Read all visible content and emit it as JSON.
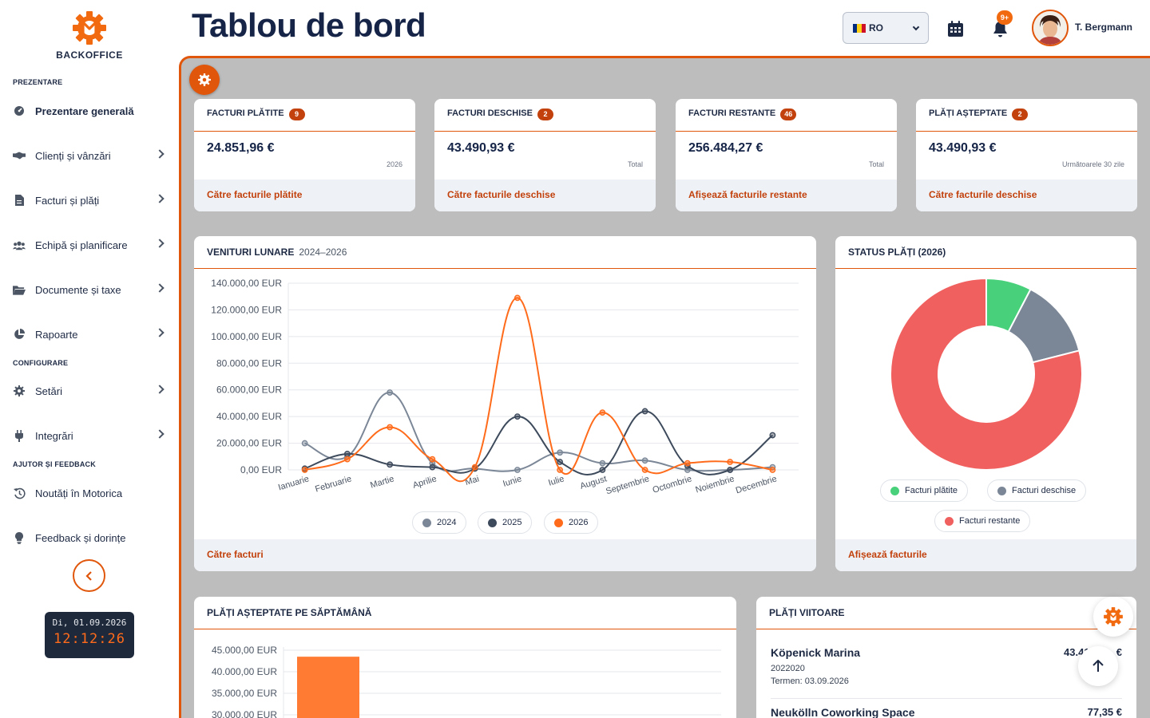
{
  "app": {
    "brand": "BACKOFFICE"
  },
  "sidebar": {
    "sections": {
      "overview": "PREZENTARE",
      "config": "CONFIGURARE",
      "help": "AJUTOR ȘI FEEDBACK"
    },
    "items": [
      {
        "label": "Prezentare generală",
        "icon": "dashboard-icon"
      },
      {
        "label": "Clienți și vânzări",
        "icon": "handshake-icon"
      },
      {
        "label": "Facturi și plăți",
        "icon": "invoice-icon"
      },
      {
        "label": "Echipă și planificare",
        "icon": "team-icon"
      },
      {
        "label": "Documente și taxe",
        "icon": "folder-icon"
      },
      {
        "label": "Rapoarte",
        "icon": "pie-chart-icon"
      },
      {
        "label": "Setări",
        "icon": "gear-icon"
      },
      {
        "label": "Integrări",
        "icon": "plug-icon"
      },
      {
        "label": "Noutăți în Motorica",
        "icon": "history-icon"
      },
      {
        "label": "Feedback și dorințe",
        "icon": "lightbulb-icon"
      }
    ],
    "clock": {
      "date": "Di, 01.09.2026",
      "time": "12:12:26"
    }
  },
  "header": {
    "title": "Tablou de bord",
    "language": "RO",
    "notifications_badge": "9+",
    "user_name": "T. Bergmann"
  },
  "stats": [
    {
      "title": "FACTURI PLĂTITE",
      "badge": "9",
      "value": "24.851,96 €",
      "sub": "2026",
      "link": "Către facturile plătite"
    },
    {
      "title": "FACTURI DESCHISE",
      "badge": "2",
      "value": "43.490,93 €",
      "sub": "Total",
      "link": "Către facturile deschise"
    },
    {
      "title": "FACTURI RESTANTE",
      "badge": "46",
      "value": "256.484,27 €",
      "sub": "Total",
      "link": "Afișează facturile restante"
    },
    {
      "title": "PLĂȚI AȘTEPTATE",
      "badge": "2",
      "value": "43.490,93 €",
      "sub": "Următoarele 30 zile",
      "link": "Către facturile deschise"
    }
  ],
  "revenue": {
    "title": "VENITURI LUNARE",
    "subtitle": "2024–2026",
    "link": "Către facturi"
  },
  "status": {
    "title": "STATUS PLĂȚI (2026)",
    "link": "Afișează facturile"
  },
  "weekly": {
    "title": "PLĂȚI AȘTEPTATE PE SĂPTĂMÂNĂ"
  },
  "upcoming": {
    "title": "PLĂȚI VIITOARE",
    "items": [
      {
        "name": "Köpenick Marina",
        "amount": "43.41…,… €",
        "number": "2022020",
        "due": "Termen: 03.09.2026"
      },
      {
        "name": "Neukölln Coworking Space",
        "amount": "77,35 €"
      }
    ]
  },
  "chart_data": [
    {
      "type": "line",
      "title": "VENITURI LUNARE",
      "categories": [
        "Ianuarie",
        "Februarie",
        "Martie",
        "Aprilie",
        "Mai",
        "Iunie",
        "Iulie",
        "August",
        "Septembrie",
        "Octombrie",
        "Noiembrie",
        "Decembrie"
      ],
      "series": [
        {
          "name": "2024",
          "color": "#7b8797",
          "values": [
            20000,
            10000,
            58000,
            5000,
            1000,
            0,
            13000,
            5000,
            7000,
            0,
            0,
            2000
          ]
        },
        {
          "name": "2025",
          "color": "#3d4a5c",
          "values": [
            1000,
            12000,
            4000,
            2000,
            1000,
            40000,
            6000,
            0,
            44000,
            3000,
            0,
            26000
          ]
        },
        {
          "name": "2026",
          "color": "#ff6b1a",
          "values": [
            0,
            8000,
            32000,
            8000,
            2000,
            129000,
            0,
            43000,
            0,
            5000,
            6000,
            0
          ]
        }
      ],
      "yticks": [
        "0,00 EUR",
        "20.000,00 EUR",
        "40.000,00 EUR",
        "60.000,00 EUR",
        "80.000,00 EUR",
        "100.000,00 EUR",
        "120.000,00 EUR",
        "140.000,00 EUR"
      ],
      "ylim": [
        0,
        140000
      ],
      "grid": true,
      "legend": "bottom"
    },
    {
      "type": "pie",
      "title": "STATUS PLĂȚI (2026)",
      "categories": [
        "Facturi plătite",
        "Facturi deschise",
        "Facturi restante"
      ],
      "values": [
        24851.96,
        43490.93,
        256484.27
      ],
      "colors": [
        "#48d17a",
        "#7b8797",
        "#f0605f"
      ],
      "legend": "bottom"
    },
    {
      "type": "bar",
      "title": "PLĂȚI AȘTEPTATE PE SĂPTĂMÂNĂ",
      "categories": [
        ""
      ],
      "values": [
        43490.93
      ],
      "color": "#ff7a33",
      "yticks": [
        "30.000,00 EUR",
        "35.000,00 EUR",
        "40.000,00 EUR",
        "45.000,00 EUR"
      ],
      "ylim": [
        0,
        45000
      ],
      "grid": true
    }
  ]
}
